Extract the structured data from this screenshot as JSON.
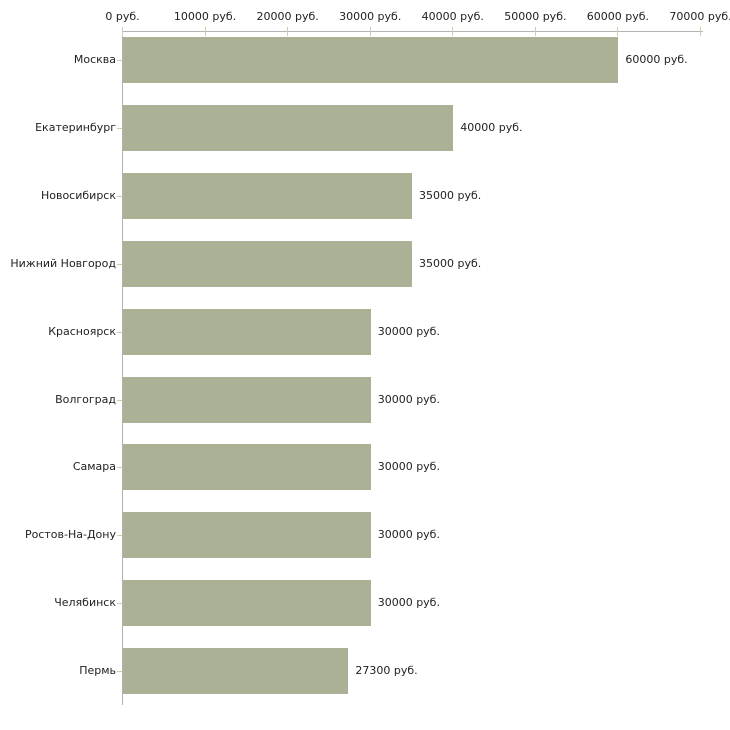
{
  "chart_data": {
    "type": "bar",
    "orientation": "horizontal",
    "title": "",
    "unit": "руб.",
    "categories": [
      "Москва",
      "Екатеринбург",
      "Новосибирск",
      "Нижний Новгород",
      "Красноярск",
      "Волгоград",
      "Самара",
      "Ростов-На-Дону",
      "Челябинск",
      "Пермь"
    ],
    "values": [
      60000,
      40000,
      35000,
      35000,
      30000,
      30000,
      30000,
      30000,
      30000,
      27300
    ],
    "value_labels": [
      "60000 руб.",
      "40000 руб.",
      "35000 руб.",
      "35000 руб.",
      "30000 руб.",
      "30000 руб.",
      "30000 руб.",
      "30000 руб.",
      "30000 руб.",
      "27300 руб."
    ],
    "xlabel": "",
    "ylabel": "",
    "xlim": [
      0,
      70000
    ],
    "x_axis_position": "top",
    "x_ticks": [
      {
        "value": 0,
        "label": "0 руб."
      },
      {
        "value": 10000,
        "label": "10000 руб."
      },
      {
        "value": 20000,
        "label": "20000 руб."
      },
      {
        "value": 30000,
        "label": "30000 руб."
      },
      {
        "value": 40000,
        "label": "40000 руб."
      },
      {
        "value": 50000,
        "label": "50000 руб."
      },
      {
        "value": 60000,
        "label": "60000 руб."
      },
      {
        "value": 70000,
        "label": "70000 руб."
      }
    ],
    "grid": false,
    "legend": "none",
    "colors": {
      "bar": "#abb194",
      "axis": "#b3b3b3",
      "tick": "#ccd0ad",
      "text": "#222222"
    }
  }
}
